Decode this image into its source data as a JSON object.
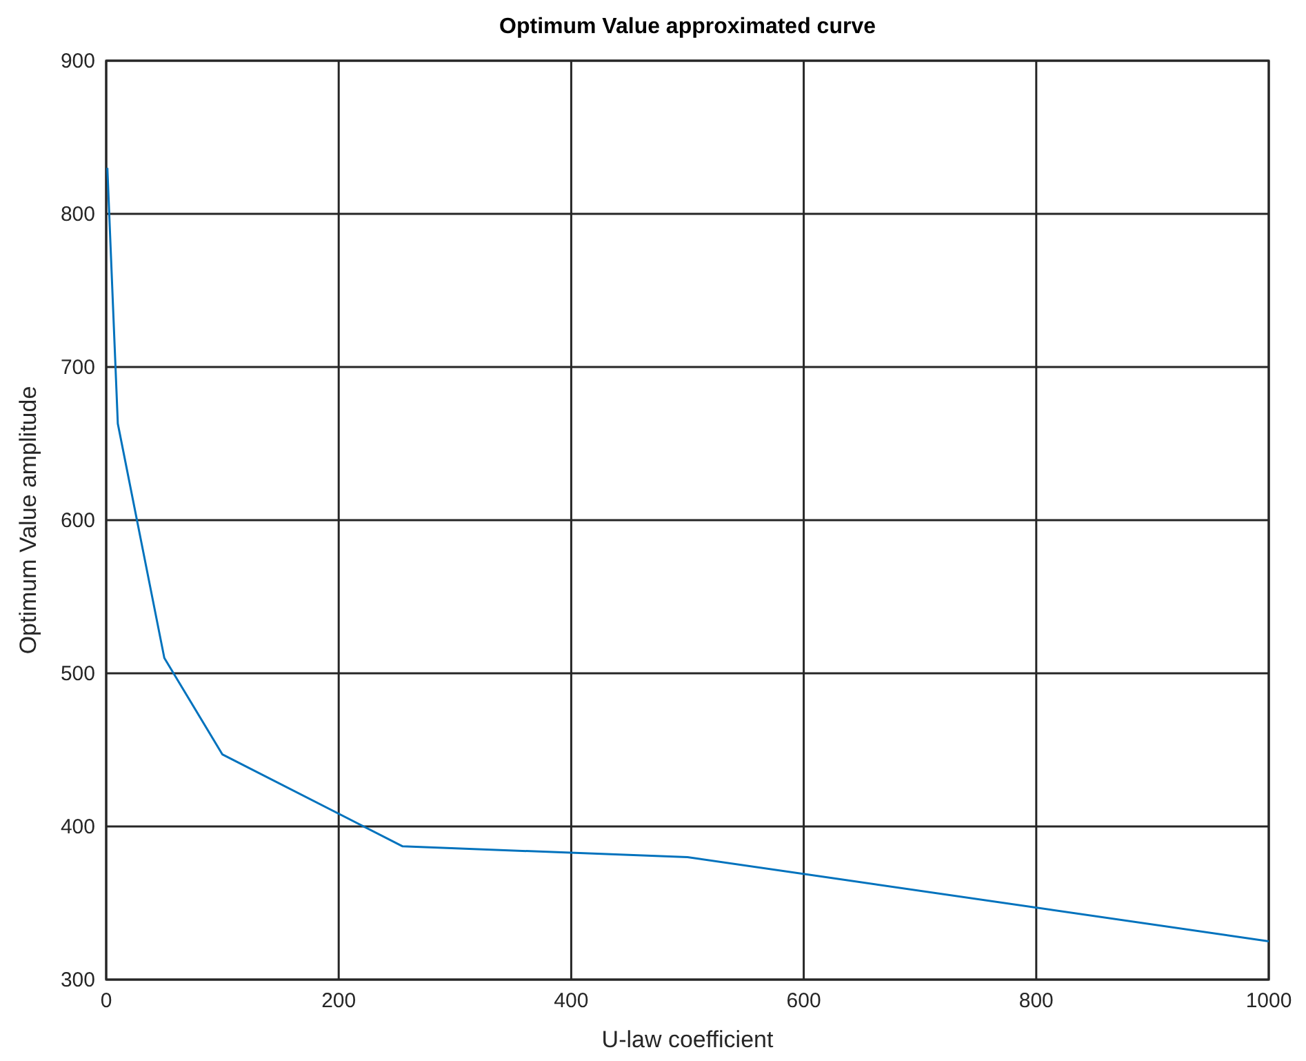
{
  "chart_data": {
    "type": "line",
    "title": "Optimum Value approximated curve",
    "xlabel": "U-law coefficient",
    "ylabel": "Optimum Value amplitude",
    "x": [
      1,
      10,
      50,
      100,
      255,
      500,
      1000
    ],
    "series": [
      {
        "color": "#0072bd",
        "values": [
          830,
          663,
          510,
          447,
          387,
          380,
          325
        ]
      }
    ],
    "xlim": [
      0,
      1000
    ],
    "xticks": [
      0,
      200,
      400,
      600,
      800,
      1000
    ],
    "ylim": [
      300,
      900
    ],
    "yticks": [
      300,
      400,
      500,
      600,
      700,
      800,
      900
    ],
    "grid": true,
    "marker": "none",
    "line_style": "solid"
  }
}
